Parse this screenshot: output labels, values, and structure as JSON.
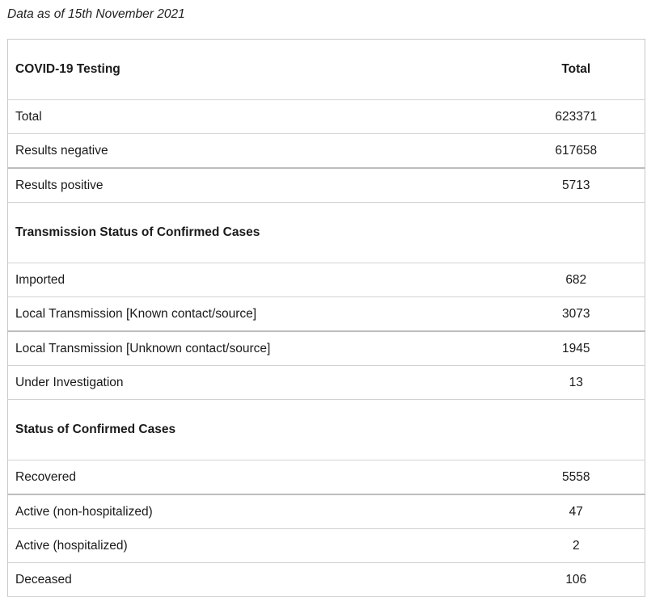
{
  "as_of": "Data as of 15th November 2021",
  "table": {
    "header": {
      "label": "COVID-19 Testing",
      "total": "Total"
    },
    "testing": [
      {
        "label": "Total",
        "value": "623371"
      },
      {
        "label": "Results negative",
        "value": "617658"
      },
      {
        "label": "Results positive",
        "value": "5713"
      }
    ],
    "transmission_title": "Transmission Status of Confirmed Cases",
    "transmission": [
      {
        "label": "Imported",
        "value": "682"
      },
      {
        "label": "Local Transmission [Known contact/source]",
        "value": "3073"
      },
      {
        "label": "Local Transmission [Unknown contact/source]",
        "value": "1945"
      },
      {
        "label": "Under Investigation",
        "value": "13"
      }
    ],
    "status_title": "Status of Confirmed Cases",
    "status": [
      {
        "label": "Recovered",
        "value": "5558"
      },
      {
        "label": "Active (non-hospitalized)",
        "value": "47"
      },
      {
        "label": "Active (hospitalized)",
        "value": "2"
      },
      {
        "label": "Deceased",
        "value": "106"
      }
    ]
  }
}
